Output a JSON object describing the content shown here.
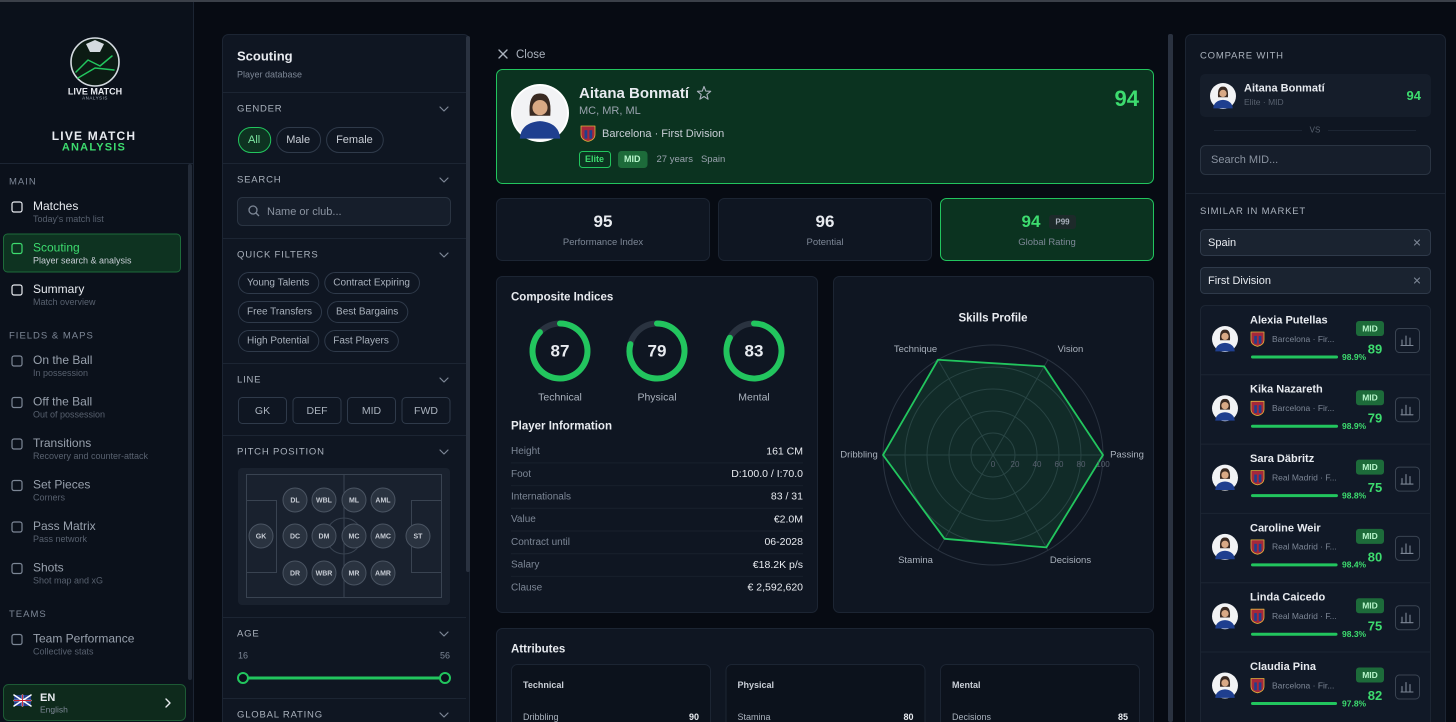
{
  "sidebar": {
    "logo": {
      "line1": "LIVE MATCH",
      "line2": "ANALYSIS"
    },
    "brand": {
      "line1": "LIVE MATCH",
      "line2": "ANALYSIS"
    },
    "sections": [
      {
        "label": "MAIN",
        "items": [
          {
            "title": "Matches",
            "subtitle": "Today's match list"
          },
          {
            "title": "Scouting",
            "subtitle": "Player search & analysis"
          },
          {
            "title": "Summary",
            "subtitle": "Match overview"
          }
        ]
      },
      {
        "label": "FIELDS & MAPS",
        "items": [
          {
            "title": "On the Ball",
            "subtitle": "In possession"
          },
          {
            "title": "Off the Ball",
            "subtitle": "Out of possession"
          },
          {
            "title": "Transitions",
            "subtitle": "Recovery and counter-attack"
          },
          {
            "title": "Set Pieces",
            "subtitle": "Corners"
          },
          {
            "title": "Pass Matrix",
            "subtitle": "Pass network"
          },
          {
            "title": "Shots",
            "subtitle": "Shot map and xG"
          }
        ]
      },
      {
        "label": "TEAMS",
        "items": [
          {
            "title": "Team Performance",
            "subtitle": "Collective stats"
          }
        ]
      }
    ],
    "language": {
      "code": "EN",
      "name": "English"
    }
  },
  "filters": {
    "title": "Scouting",
    "subtitle": "Player database",
    "gender": {
      "label": "GENDER",
      "options": [
        "All",
        "Male",
        "Female"
      ]
    },
    "search": {
      "label": "SEARCH",
      "placeholder": "Name or club..."
    },
    "quick_filters": {
      "label": "QUICK FILTERS",
      "options": [
        "Young Talents",
        "Contract Expiring",
        "Free Transfers",
        "Best Bargains",
        "High Potential",
        "Fast Players"
      ]
    },
    "line": {
      "label": "LINE",
      "options": [
        "GK",
        "DEF",
        "MID",
        "FWD"
      ]
    },
    "pitch_position": {
      "label": "PITCH POSITION",
      "rows": [
        [
          "DL",
          "WBL",
          "ML",
          "AML"
        ],
        [
          "GK",
          "DC",
          "DM",
          "MC",
          "AMC",
          "ST"
        ],
        [
          "DR",
          "WBR",
          "MR",
          "AMR"
        ]
      ]
    },
    "age": {
      "label": "AGE",
      "min": 16,
      "max": 56
    },
    "global_rating": {
      "label": "GLOBAL RATING"
    }
  },
  "player": {
    "close": "Close",
    "name": "Aitana Bonmatí",
    "positions": "MC, MR, ML",
    "club": "Barcelona · First Division",
    "tags": [
      "Elite",
      "MID"
    ],
    "age": "27 years",
    "nationality": "Spain",
    "rating": 94,
    "stats": [
      {
        "value": 95,
        "label": "Performance Index"
      },
      {
        "value": 96,
        "label": "Potential"
      },
      {
        "value": 94,
        "badge": "P99",
        "label": "Global Rating"
      }
    ],
    "composite": {
      "title": "Composite Indices",
      "lim": [
        0,
        100
      ],
      "indices": [
        {
          "value": 87,
          "label": "Technical"
        },
        {
          "value": 79,
          "label": "Physical"
        },
        {
          "value": 83,
          "label": "Mental"
        }
      ]
    },
    "info": {
      "title": "Player Information",
      "rows": [
        {
          "label": "Height",
          "value": "161 CM"
        },
        {
          "label": "Foot",
          "value": "D:100.0 / I:70.0"
        },
        {
          "label": "Internationals",
          "value": "83 / 31"
        },
        {
          "label": "Value",
          "value": "€2.0M"
        },
        {
          "label": "Contract until",
          "value": "06-2028"
        },
        {
          "label": "Salary",
          "value": "€18.2K p/s"
        },
        {
          "label": "Clause",
          "value": "€ 2,592,620"
        }
      ]
    },
    "skills": {
      "title": "Skills Profile",
      "axes": [
        "Technique",
        "Vision",
        "Passing",
        "Decisions",
        "Stamina",
        "Dribbling"
      ],
      "values": [
        100,
        93,
        100,
        97,
        88,
        100
      ],
      "rlim": [
        0,
        100
      ],
      "ticks": [
        0,
        20,
        40,
        60,
        80,
        100
      ]
    },
    "attributes": {
      "title": "Attributes",
      "groups": [
        {
          "title": "Technical",
          "items": [
            {
              "name": "Dribbling",
              "value": 90
            }
          ]
        },
        {
          "title": "Physical",
          "items": [
            {
              "name": "Stamina",
              "value": 80
            }
          ]
        },
        {
          "title": "Mental",
          "items": [
            {
              "name": "Decisions",
              "value": 85
            }
          ]
        }
      ]
    }
  },
  "compare": {
    "label": "COMPARE WITH",
    "player": {
      "name": "Aitana Bonmatí",
      "meta": "Elite · MID",
      "rating": 94
    },
    "vs": "VS",
    "search": "Search MID...",
    "similar_label": "SIMILAR IN MARKET",
    "filters": [
      "Spain",
      "First Division"
    ],
    "similarity_lim": [
      0,
      100
    ],
    "players": [
      {
        "name": "Alexia Putellas",
        "club": "Barcelona · Fir...",
        "position": "MID",
        "rating": 89,
        "similarity": 98.9,
        "similarity_label": "98.9%"
      },
      {
        "name": "Kika Nazareth",
        "club": "Barcelona · Fir...",
        "position": "MID",
        "rating": 79,
        "similarity": 98.9,
        "similarity_label": "98.9%"
      },
      {
        "name": "Sara Däbritz",
        "club": "Real Madrid · F...",
        "position": "MID",
        "rating": 75,
        "similarity": 98.8,
        "similarity_label": "98.8%"
      },
      {
        "name": "Caroline Weir",
        "club": "Real Madrid · F...",
        "position": "MID",
        "rating": 80,
        "similarity": 98.4,
        "similarity_label": "98.4%"
      },
      {
        "name": "Linda Caicedo",
        "club": "Real Madrid · F...",
        "position": "MID",
        "rating": 75,
        "similarity": 98.3,
        "similarity_label": "98.3%"
      },
      {
        "name": "Claudia Pina",
        "club": "Barcelona · Fir...",
        "position": "MID",
        "rating": 82,
        "similarity": 97.8,
        "similarity_label": "97.8%"
      }
    ]
  }
}
